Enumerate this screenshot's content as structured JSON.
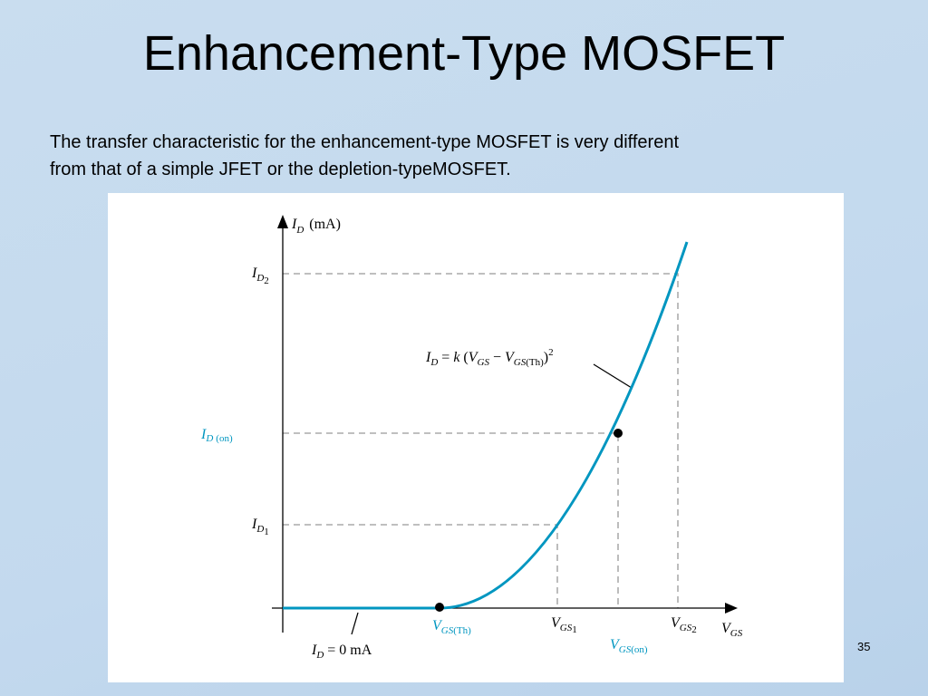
{
  "title": "Enhancement-Type MOSFET",
  "body": [
    "The transfer characteristic for the enhancement-type MOSFET is very different",
    "from that of a simple JFET or the depletion-typeMOSFET."
  ],
  "diagram": {
    "y_axis": {
      "base": "I",
      "sub": "D",
      "suffix": "(mA)"
    },
    "x_axis": {
      "base": "V",
      "sub": "GS"
    },
    "id2": {
      "base": "I",
      "sub": "D",
      "sub2": "2"
    },
    "id_on": {
      "base": "I",
      "sub": "D",
      "suffix": "(on)"
    },
    "id1": {
      "base": "I",
      "sub": "D",
      "sub2": "1"
    },
    "equation": [
      "I",
      "D",
      " = ",
      "k",
      " (",
      "V",
      "GS",
      " − ",
      "V",
      "GS",
      "(Th)",
      ")",
      "2"
    ],
    "vgs_th": {
      "base": "V",
      "sub": "GS",
      "suffix": "(Th)"
    },
    "vgs1": {
      "base": "V",
      "sub": "GS",
      "sub2": "1"
    },
    "vgs_on": {
      "base": "V",
      "sub": "GS",
      "suffix": "(on)"
    },
    "vgs2": {
      "base": "V",
      "sub": "GS",
      "sub2": "2"
    },
    "id_zero": {
      "base": "I",
      "sub": "D",
      "suffix": " = 0 mA"
    }
  },
  "slide_number": "35"
}
